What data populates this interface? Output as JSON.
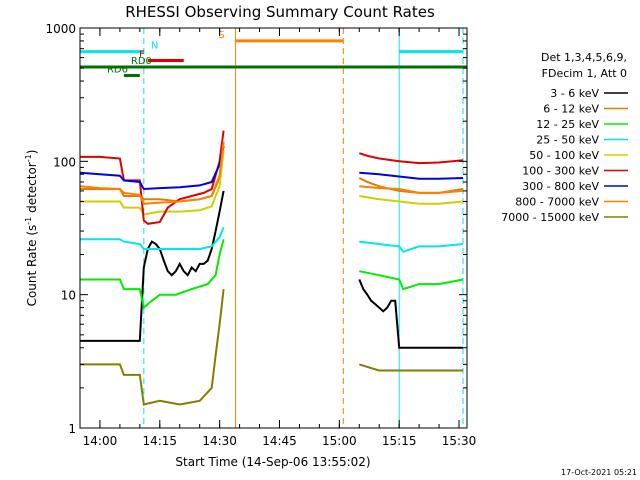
{
  "chart_data": {
    "type": "line",
    "title": "RHESSI Observing Summary Count Rates",
    "xlabel": "Start Time (14-Sep-06 13:55:02)",
    "ylabel_parts": [
      "Count Rate (s",
      "-1",
      " detector",
      "-1",
      ")"
    ],
    "yscale": "log",
    "ylim": [
      1,
      1000
    ],
    "xlim_minutes": [
      0,
      97
    ],
    "x_ticks": [
      {
        "m": 5,
        "label": "14:00"
      },
      {
        "m": 20,
        "label": "14:15"
      },
      {
        "m": 35,
        "label": "14:30"
      },
      {
        "m": 50,
        "label": "14:45"
      },
      {
        "m": 65,
        "label": "15:00"
      },
      {
        "m": 80,
        "label": "15:15"
      },
      {
        "m": 95,
        "label": "15:30"
      }
    ],
    "y_ticks": [
      {
        "v": 1,
        "label": "1"
      },
      {
        "v": 10,
        "label": "10"
      },
      {
        "v": 100,
        "label": "100"
      },
      {
        "v": 1000,
        "label": "1000"
      }
    ],
    "legend_header": [
      "Det 1,3,4,5,6,9,",
      "FDecim 1, Att 0"
    ],
    "series": [
      {
        "name": "3 - 6 keV",
        "color": "#000000",
        "data": [
          [
            0,
            4.5
          ],
          [
            7,
            4.5
          ],
          [
            11,
            4.5
          ],
          [
            12,
            4.5
          ],
          [
            15,
            4.5
          ],
          [
            16,
            16
          ],
          [
            17,
            22
          ],
          [
            18,
            25
          ],
          [
            19,
            24
          ],
          [
            20,
            22
          ],
          [
            21,
            18
          ],
          [
            22,
            15
          ],
          [
            23,
            14
          ],
          [
            24,
            15
          ],
          [
            25,
            17
          ],
          [
            26,
            15
          ],
          [
            27,
            14
          ],
          [
            28,
            16
          ],
          [
            29,
            15
          ],
          [
            30,
            17
          ],
          [
            31,
            17
          ],
          [
            32,
            18
          ],
          [
            33,
            22
          ],
          [
            34,
            30
          ],
          [
            35,
            42
          ],
          [
            36,
            60
          ],
          null,
          [
            70,
            13
          ],
          [
            71,
            11
          ],
          [
            72,
            10
          ],
          [
            73,
            9
          ],
          [
            74,
            8.5
          ],
          [
            75,
            8
          ],
          [
            76,
            7.5
          ],
          [
            77,
            8
          ],
          [
            78,
            9
          ],
          [
            79,
            9
          ],
          [
            80,
            4
          ],
          [
            84,
            4
          ],
          [
            88,
            4
          ],
          [
            92,
            4
          ],
          [
            96,
            4
          ]
        ]
      },
      {
        "name": "6 - 12 keV",
        "color": "#e87800",
        "data": [
          [
            0,
            62
          ],
          [
            5,
            62
          ],
          [
            10,
            62
          ],
          [
            11,
            55
          ],
          [
            12,
            55
          ],
          [
            15,
            55
          ],
          [
            16,
            52
          ],
          [
            20,
            52
          ],
          [
            25,
            50
          ],
          [
            30,
            52
          ],
          [
            33,
            55
          ],
          [
            35,
            75
          ],
          [
            36,
            140
          ],
          null,
          [
            70,
            75
          ],
          [
            72,
            70
          ],
          [
            75,
            65
          ],
          [
            80,
            60
          ],
          [
            85,
            58
          ],
          [
            90,
            58
          ],
          [
            96,
            62
          ]
        ]
      },
      {
        "name": "12 - 25 keV",
        "color": "#00ee00",
        "data": [
          [
            0,
            13
          ],
          [
            5,
            13
          ],
          [
            10,
            13
          ],
          [
            11,
            11
          ],
          [
            15,
            11
          ],
          [
            16,
            8
          ],
          [
            18,
            9
          ],
          [
            20,
            10
          ],
          [
            24,
            10
          ],
          [
            28,
            11
          ],
          [
            32,
            12
          ],
          [
            34,
            14
          ],
          [
            35,
            20
          ],
          [
            36,
            26
          ],
          null,
          [
            70,
            15
          ],
          [
            75,
            14
          ],
          [
            80,
            13
          ],
          [
            81,
            11
          ],
          [
            85,
            12
          ],
          [
            90,
            12
          ],
          [
            96,
            13
          ]
        ]
      },
      {
        "name": "25 - 50 keV",
        "color": "#00e8e8",
        "data": [
          [
            0,
            26
          ],
          [
            5,
            26
          ],
          [
            10,
            26
          ],
          [
            11,
            25
          ],
          [
            15,
            24
          ],
          [
            16,
            22
          ],
          [
            20,
            22
          ],
          [
            25,
            22
          ],
          [
            30,
            22
          ],
          [
            33,
            23
          ],
          [
            35,
            27
          ],
          [
            36,
            32
          ],
          null,
          [
            70,
            25
          ],
          [
            75,
            24
          ],
          [
            80,
            23
          ],
          [
            81,
            21
          ],
          [
            85,
            23
          ],
          [
            90,
            23
          ],
          [
            96,
            24
          ]
        ]
      },
      {
        "name": "50 - 100 keV",
        "color": "#d0d000",
        "data": [
          [
            0,
            50
          ],
          [
            5,
            50
          ],
          [
            10,
            50
          ],
          [
            11,
            45
          ],
          [
            15,
            45
          ],
          [
            16,
            40
          ],
          [
            20,
            42
          ],
          [
            25,
            42
          ],
          [
            30,
            43
          ],
          [
            33,
            46
          ],
          [
            35,
            65
          ],
          [
            36,
            120
          ],
          null,
          [
            70,
            55
          ],
          [
            75,
            52
          ],
          [
            80,
            50
          ],
          [
            85,
            48
          ],
          [
            90,
            48
          ],
          [
            96,
            50
          ]
        ]
      },
      {
        "name": "100 - 300 keV",
        "color": "#e00000",
        "data": [
          [
            0,
            108
          ],
          [
            5,
            108
          ],
          [
            10,
            105
          ],
          [
            11,
            72
          ],
          [
            15,
            72
          ],
          [
            16,
            36
          ],
          [
            17,
            34
          ],
          [
            20,
            35
          ],
          [
            22,
            45
          ],
          [
            25,
            52
          ],
          [
            28,
            55
          ],
          [
            31,
            58
          ],
          [
            33,
            62
          ],
          [
            35,
            100
          ],
          [
            36,
            170
          ],
          null,
          [
            70,
            115
          ],
          [
            72,
            110
          ],
          [
            75,
            105
          ],
          [
            80,
            100
          ],
          [
            85,
            97
          ],
          [
            90,
            98
          ],
          [
            96,
            102
          ]
        ]
      },
      {
        "name": "300 - 800 keV",
        "color": "#0000e0",
        "data": [
          [
            0,
            82
          ],
          [
            5,
            80
          ],
          [
            10,
            78
          ],
          [
            11,
            72
          ],
          [
            15,
            70
          ],
          [
            16,
            62
          ],
          [
            20,
            63
          ],
          [
            25,
            64
          ],
          [
            30,
            66
          ],
          [
            33,
            70
          ],
          [
            35,
            95
          ],
          [
            36,
            130
          ],
          null,
          [
            70,
            82
          ],
          [
            75,
            80
          ],
          [
            80,
            77
          ],
          [
            85,
            74
          ],
          [
            90,
            74
          ],
          [
            96,
            75
          ]
        ]
      },
      {
        "name": "800 - 7000 keV",
        "color": "#ff8000",
        "data": [
          [
            0,
            65
          ],
          [
            5,
            63
          ],
          [
            10,
            62
          ],
          [
            11,
            58
          ],
          [
            15,
            56
          ],
          [
            16,
            48
          ],
          [
            20,
            49
          ],
          [
            25,
            50
          ],
          [
            30,
            52
          ],
          [
            33,
            55
          ],
          [
            35,
            78
          ],
          [
            36,
            140
          ],
          null,
          [
            70,
            65
          ],
          [
            75,
            63
          ],
          [
            80,
            62
          ],
          [
            85,
            58
          ],
          [
            90,
            58
          ],
          [
            96,
            60
          ]
        ]
      },
      {
        "name": "7000 - 15000 keV",
        "color": "#808000",
        "data": [
          [
            0,
            3
          ],
          [
            5,
            3
          ],
          [
            10,
            3
          ],
          [
            11,
            2.5
          ],
          [
            15,
            2.5
          ],
          [
            16,
            1.5
          ],
          [
            20,
            1.6
          ],
          [
            25,
            1.5
          ],
          [
            30,
            1.6
          ],
          [
            33,
            2
          ],
          [
            34,
            3.5
          ],
          [
            35,
            6
          ],
          [
            36,
            11
          ],
          null,
          [
            70,
            3
          ],
          [
            75,
            2.7
          ],
          [
            80,
            2.7
          ],
          [
            85,
            2.7
          ],
          [
            90,
            2.7
          ],
          [
            96,
            2.7
          ]
        ]
      }
    ],
    "vertical_lines": [
      {
        "m": 0,
        "color": "#00e8e8",
        "style": "solid"
      },
      {
        "m": 16,
        "color": "#00e8e8",
        "style": "dashed"
      },
      {
        "m": 39,
        "color": "#ff8000",
        "style": "solid"
      },
      {
        "m": 66,
        "color": "#ff8000",
        "style": "dashed"
      },
      {
        "m": 80,
        "color": "#00e8e8",
        "style": "solid"
      },
      {
        "m": 96,
        "color": "#00e8e8",
        "style": "dashed"
      }
    ],
    "flags": [
      {
        "label": "N",
        "color": "#00e8e8",
        "segments": [
          [
            0,
            16
          ],
          [
            80,
            96
          ]
        ],
        "level": 665,
        "label_m": 17,
        "label_side": "right"
      },
      {
        "label": "F",
        "color": "#e00000",
        "segments": [
          [
            17,
            26
          ]
        ],
        "level": 570,
        "label_m": 17,
        "label_side": "left"
      },
      {
        "label": "RD0",
        "color": "#007000",
        "segments": [
          [
            0,
            97
          ]
        ],
        "level": 510,
        "label_m": 12,
        "label_side": "right"
      },
      {
        "label": "RD6",
        "color": "#007000",
        "segments": [
          [
            11,
            15
          ]
        ],
        "level": 440,
        "label_m": 6,
        "label_side": "right"
      },
      {
        "label": "S",
        "color": "#ff8000",
        "segments": [
          [
            39,
            66
          ]
        ],
        "level": 800,
        "label_m": 37,
        "label_side": "left"
      }
    ],
    "footer_date": "17-Oct-2021 05:21"
  }
}
